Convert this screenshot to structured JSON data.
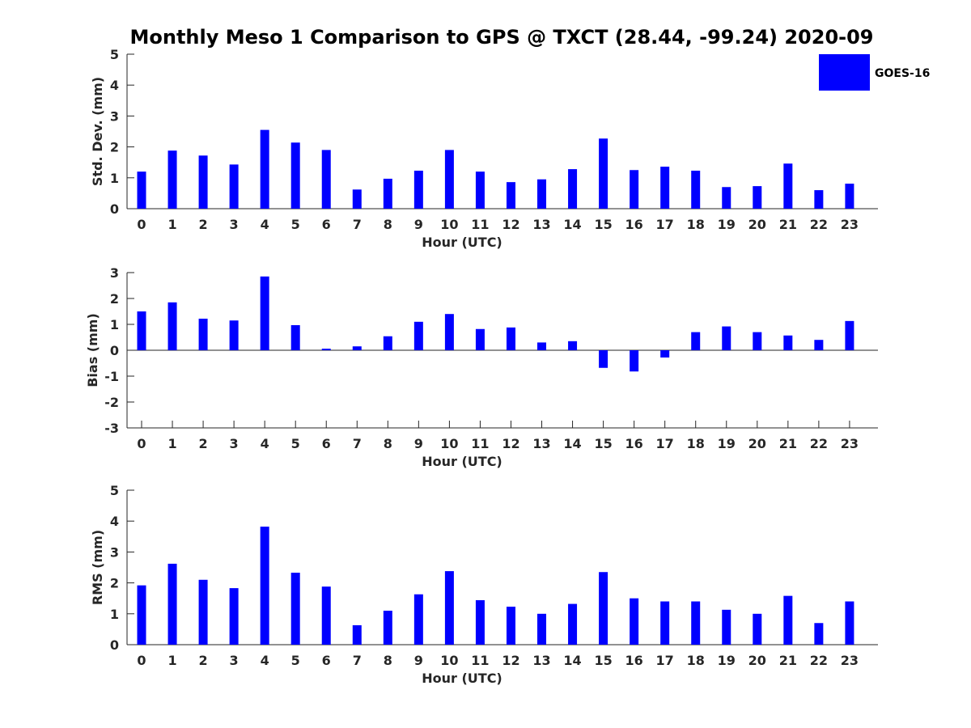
{
  "title": "Monthly Meso 1 Comparison to GPS @ TXCT (28.44, -99.24) 2020-09",
  "legend": {
    "label": "GOES-16",
    "color": "#0000ff",
    "placement": "top-right"
  },
  "chart_data": [
    {
      "type": "bar",
      "xlabel": "Hour (UTC)",
      "ylabel": "Std. Dev. (mm)",
      "ylim": [
        0,
        5
      ],
      "yticks": [
        0,
        1,
        2,
        3,
        4,
        5
      ],
      "categories": [
        "0",
        "1",
        "2",
        "3",
        "4",
        "5",
        "6",
        "7",
        "8",
        "9",
        "10",
        "11",
        "12",
        "13",
        "14",
        "15",
        "16",
        "17",
        "18",
        "19",
        "20",
        "21",
        "22",
        "23"
      ],
      "series": [
        {
          "name": "GOES-16",
          "color": "#0000ff",
          "values": [
            1.2,
            1.88,
            1.72,
            1.43,
            2.55,
            2.14,
            1.9,
            0.62,
            0.97,
            1.23,
            1.9,
            1.2,
            0.86,
            0.95,
            1.28,
            2.27,
            1.25,
            1.36,
            1.23,
            0.7,
            0.73,
            1.46,
            0.6,
            0.81
          ]
        }
      ]
    },
    {
      "type": "bar",
      "xlabel": "Hour (UTC)",
      "ylabel": "Bias (mm)",
      "ylim": [
        -3,
        3
      ],
      "yticks": [
        -3,
        -2,
        -1,
        0,
        1,
        2,
        3
      ],
      "zero_line": true,
      "categories": [
        "0",
        "1",
        "2",
        "3",
        "4",
        "5",
        "6",
        "7",
        "8",
        "9",
        "10",
        "11",
        "12",
        "13",
        "14",
        "15",
        "16",
        "17",
        "18",
        "19",
        "20",
        "21",
        "22",
        "23"
      ],
      "series": [
        {
          "name": "GOES-16",
          "color": "#0000ff",
          "values": [
            1.5,
            1.85,
            1.22,
            1.15,
            2.85,
            0.97,
            0.06,
            0.15,
            0.54,
            1.1,
            1.4,
            0.82,
            0.88,
            0.3,
            0.35,
            -0.68,
            -0.82,
            -0.28,
            0.7,
            0.92,
            0.7,
            0.57,
            0.4,
            1.13
          ]
        }
      ]
    },
    {
      "type": "bar",
      "xlabel": "Hour (UTC)",
      "ylabel": "RMS (mm)",
      "ylim": [
        0,
        5
      ],
      "yticks": [
        0,
        1,
        2,
        3,
        4,
        5
      ],
      "categories": [
        "0",
        "1",
        "2",
        "3",
        "4",
        "5",
        "6",
        "7",
        "8",
        "9",
        "10",
        "11",
        "12",
        "13",
        "14",
        "15",
        "16",
        "17",
        "18",
        "19",
        "20",
        "21",
        "22",
        "23"
      ],
      "series": [
        {
          "name": "GOES-16",
          "color": "#0000ff",
          "values": [
            1.92,
            2.62,
            2.1,
            1.83,
            3.82,
            2.33,
            1.88,
            0.63,
            1.1,
            1.63,
            2.38,
            1.44,
            1.23,
            1.0,
            1.32,
            2.35,
            1.5,
            1.4,
            1.4,
            1.13,
            1.0,
            1.58,
            0.7,
            1.4
          ]
        }
      ]
    }
  ]
}
